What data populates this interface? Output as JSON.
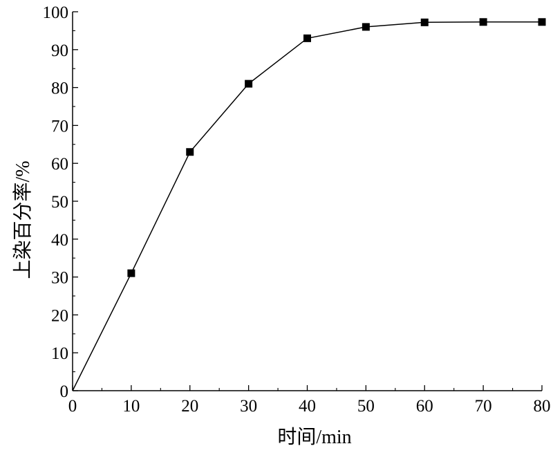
{
  "chart_data": {
    "type": "line",
    "title": "",
    "xlabel": "时间/min",
    "ylabel": "上染百分率/%",
    "xlim": [
      0,
      80
    ],
    "ylim": [
      0,
      100
    ],
    "x_ticks": [
      0,
      10,
      20,
      30,
      40,
      50,
      60,
      70,
      80
    ],
    "y_ticks": [
      0,
      10,
      20,
      30,
      40,
      50,
      60,
      70,
      80,
      90,
      100
    ],
    "grid": false,
    "legend": "none",
    "marker": "square",
    "color": "#000000",
    "series": [
      {
        "x": [
          0,
          10,
          20,
          30,
          40,
          50,
          60,
          70,
          80
        ],
        "values": [
          0,
          31,
          63,
          81,
          93,
          96,
          97.2,
          97.3,
          97.3
        ]
      }
    ]
  }
}
